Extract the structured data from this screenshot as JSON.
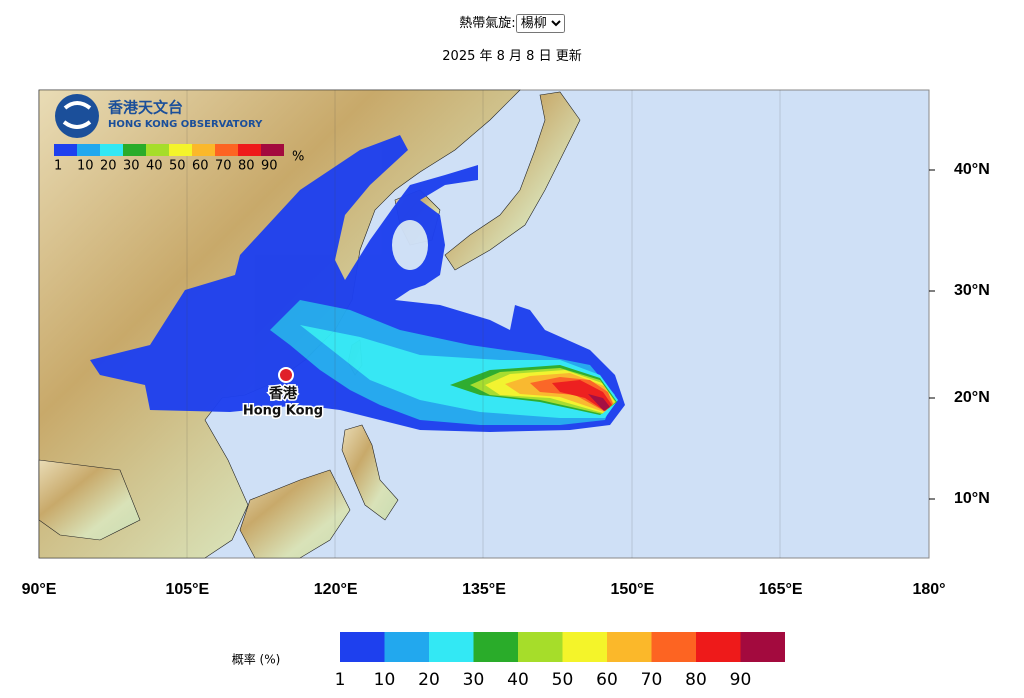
{
  "header": {
    "label": "熱帶氣旋:",
    "selected": "楊柳",
    "updated": "2025 年 8 月 8 日 更新"
  },
  "map": {
    "logo": {
      "name_zh": "香港天文台",
      "name_en": "HONG KONG OBSERVATORY"
    },
    "inset_unit": "%",
    "city": {
      "name_zh": "香港",
      "name_en": "Hong Kong"
    },
    "longitudes": [
      "90°E",
      "105°E",
      "120°E",
      "135°E",
      "150°E",
      "165°E",
      "180°"
    ],
    "latitudes": [
      "40°N",
      "30°N",
      "20°N",
      "10°N"
    ]
  },
  "legend": {
    "title": "概率 (%)",
    "levels": [
      {
        "label": 1,
        "color": "#1e40ee"
      },
      {
        "label": 10,
        "color": "#22a8ee"
      },
      {
        "label": 20,
        "color": "#33e8f4"
      },
      {
        "label": 30,
        "color": "#2aac2a"
      },
      {
        "label": 40,
        "color": "#a6dd2a"
      },
      {
        "label": 50,
        "color": "#f4f42a"
      },
      {
        "label": 60,
        "color": "#fbb82a"
      },
      {
        "label": 70,
        "color": "#fd6422"
      },
      {
        "label": 80,
        "color": "#ee1a1a"
      },
      {
        "label": 90,
        "color": "#a30a3e"
      }
    ]
  }
}
